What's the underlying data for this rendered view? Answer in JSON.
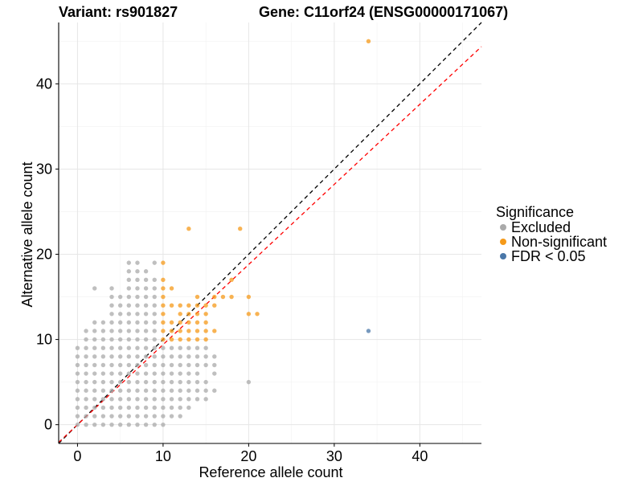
{
  "header": {
    "variant": "Variant: rs901827",
    "gene": "Gene: C11orf24 (ENSG00000171067)"
  },
  "chart_data": {
    "type": "scatter",
    "xlabel": "Reference allele count",
    "ylabel": "Alternative allele count",
    "xlim": [
      -2.2,
      47.2
    ],
    "ylim": [
      -2.2,
      47.2
    ],
    "xticks": [
      0,
      10,
      20,
      30,
      40
    ],
    "yticks": [
      0,
      10,
      20,
      30,
      40
    ],
    "grid": true,
    "legend": {
      "title": "Significance",
      "position": "right",
      "entries": [
        {
          "label": "Excluded",
          "color": "#aaaaaa"
        },
        {
          "label": "Non-significant",
          "color": "#f59a1a"
        },
        {
          "label": "FDR < 0.05",
          "color": "#4a77a8"
        }
      ]
    },
    "reference_lines": [
      {
        "name": "y = x",
        "slope": 1.0,
        "intercept": 0,
        "color": "#000000",
        "dash": true
      },
      {
        "name": "fit",
        "slope": 0.94,
        "intercept": 0,
        "color": "#ff0000",
        "dash": true
      }
    ],
    "series": [
      {
        "name": "Excluded",
        "color": "#aaaaaa",
        "points": [
          [
            0,
            0
          ],
          [
            0,
            1
          ],
          [
            0,
            2
          ],
          [
            0,
            3
          ],
          [
            0,
            4
          ],
          [
            0,
            5
          ],
          [
            0,
            6
          ],
          [
            0,
            7
          ],
          [
            0,
            8
          ],
          [
            0,
            9
          ],
          [
            1,
            0
          ],
          [
            1,
            1
          ],
          [
            1,
            2
          ],
          [
            1,
            3
          ],
          [
            1,
            4
          ],
          [
            1,
            5
          ],
          [
            1,
            6
          ],
          [
            1,
            7
          ],
          [
            1,
            8
          ],
          [
            1,
            9
          ],
          [
            1,
            10
          ],
          [
            1,
            11
          ],
          [
            2,
            0
          ],
          [
            2,
            1
          ],
          [
            2,
            2
          ],
          [
            2,
            3
          ],
          [
            2,
            4
          ],
          [
            2,
            5
          ],
          [
            2,
            6
          ],
          [
            2,
            7
          ],
          [
            2,
            8
          ],
          [
            2,
            9
          ],
          [
            2,
            10
          ],
          [
            2,
            11
          ],
          [
            2,
            12
          ],
          [
            2,
            16
          ],
          [
            3,
            0
          ],
          [
            3,
            1
          ],
          [
            3,
            2
          ],
          [
            3,
            3
          ],
          [
            3,
            4
          ],
          [
            3,
            5
          ],
          [
            3,
            6
          ],
          [
            3,
            7
          ],
          [
            3,
            8
          ],
          [
            3,
            9
          ],
          [
            3,
            10
          ],
          [
            3,
            11
          ],
          [
            3,
            12
          ],
          [
            4,
            0
          ],
          [
            4,
            1
          ],
          [
            4,
            2
          ],
          [
            4,
            3
          ],
          [
            4,
            4
          ],
          [
            4,
            5
          ],
          [
            4,
            6
          ],
          [
            4,
            7
          ],
          [
            4,
            8
          ],
          [
            4,
            9
          ],
          [
            4,
            10
          ],
          [
            4,
            11
          ],
          [
            4,
            12
          ],
          [
            4,
            13
          ],
          [
            4,
            14
          ],
          [
            4,
            15
          ],
          [
            4,
            16
          ],
          [
            5,
            0
          ],
          [
            5,
            1
          ],
          [
            5,
            2
          ],
          [
            5,
            3
          ],
          [
            5,
            4
          ],
          [
            5,
            5
          ],
          [
            5,
            6
          ],
          [
            5,
            7
          ],
          [
            5,
            8
          ],
          [
            5,
            9
          ],
          [
            5,
            10
          ],
          [
            5,
            11
          ],
          [
            5,
            12
          ],
          [
            5,
            13
          ],
          [
            5,
            14
          ],
          [
            5,
            15
          ],
          [
            6,
            0
          ],
          [
            6,
            1
          ],
          [
            6,
            2
          ],
          [
            6,
            3
          ],
          [
            6,
            4
          ],
          [
            6,
            5
          ],
          [
            6,
            6
          ],
          [
            6,
            7
          ],
          [
            6,
            8
          ],
          [
            6,
            9
          ],
          [
            6,
            10
          ],
          [
            6,
            11
          ],
          [
            6,
            12
          ],
          [
            6,
            13
          ],
          [
            6,
            14
          ],
          [
            6,
            15
          ],
          [
            6,
            16
          ],
          [
            6,
            17
          ],
          [
            6,
            18
          ],
          [
            6,
            19
          ],
          [
            7,
            0
          ],
          [
            7,
            1
          ],
          [
            7,
            2
          ],
          [
            7,
            3
          ],
          [
            7,
            4
          ],
          [
            7,
            5
          ],
          [
            7,
            6
          ],
          [
            7,
            7
          ],
          [
            7,
            8
          ],
          [
            7,
            9
          ],
          [
            7,
            10
          ],
          [
            7,
            11
          ],
          [
            7,
            12
          ],
          [
            7,
            13
          ],
          [
            7,
            14
          ],
          [
            7,
            15
          ],
          [
            7,
            16
          ],
          [
            7,
            17
          ],
          [
            7,
            18
          ],
          [
            7,
            19
          ],
          [
            8,
            0
          ],
          [
            8,
            1
          ],
          [
            8,
            2
          ],
          [
            8,
            3
          ],
          [
            8,
            4
          ],
          [
            8,
            5
          ],
          [
            8,
            6
          ],
          [
            8,
            7
          ],
          [
            8,
            8
          ],
          [
            8,
            9
          ],
          [
            8,
            10
          ],
          [
            8,
            11
          ],
          [
            8,
            12
          ],
          [
            8,
            13
          ],
          [
            8,
            14
          ],
          [
            8,
            15
          ],
          [
            8,
            16
          ],
          [
            8,
            17
          ],
          [
            8,
            18
          ],
          [
            9,
            0
          ],
          [
            9,
            1
          ],
          [
            9,
            2
          ],
          [
            9,
            3
          ],
          [
            9,
            4
          ],
          [
            9,
            5
          ],
          [
            9,
            6
          ],
          [
            9,
            7
          ],
          [
            9,
            8
          ],
          [
            9,
            9
          ],
          [
            9,
            10
          ],
          [
            9,
            11
          ],
          [
            9,
            12
          ],
          [
            9,
            13
          ],
          [
            9,
            14
          ],
          [
            9,
            15
          ],
          [
            9,
            16
          ],
          [
            9,
            17
          ],
          [
            9,
            19
          ],
          [
            10,
            0
          ],
          [
            10,
            1
          ],
          [
            10,
            2
          ],
          [
            10,
            3
          ],
          [
            10,
            4
          ],
          [
            10,
            5
          ],
          [
            10,
            6
          ],
          [
            10,
            7
          ],
          [
            10,
            8
          ],
          [
            10,
            9
          ],
          [
            11,
            1
          ],
          [
            11,
            2
          ],
          [
            11,
            3
          ],
          [
            11,
            4
          ],
          [
            11,
            5
          ],
          [
            11,
            6
          ],
          [
            11,
            7
          ],
          [
            11,
            8
          ],
          [
            11,
            9
          ],
          [
            12,
            1
          ],
          [
            12,
            2
          ],
          [
            12,
            3
          ],
          [
            12,
            4
          ],
          [
            12,
            5
          ],
          [
            12,
            6
          ],
          [
            12,
            7
          ],
          [
            12,
            8
          ],
          [
            12,
            9
          ],
          [
            13,
            2
          ],
          [
            13,
            3
          ],
          [
            13,
            4
          ],
          [
            13,
            5
          ],
          [
            13,
            6
          ],
          [
            13,
            7
          ],
          [
            13,
            8
          ],
          [
            13,
            9
          ],
          [
            14,
            3
          ],
          [
            14,
            4
          ],
          [
            14,
            5
          ],
          [
            14,
            6
          ],
          [
            14,
            7
          ],
          [
            14,
            8
          ],
          [
            14,
            9
          ],
          [
            15,
            3
          ],
          [
            15,
            4
          ],
          [
            15,
            5
          ],
          [
            15,
            7
          ],
          [
            15,
            8
          ],
          [
            15,
            9
          ],
          [
            16,
            4
          ],
          [
            16,
            6
          ],
          [
            16,
            7
          ],
          [
            16,
            8
          ],
          [
            20,
            5
          ]
        ]
      },
      {
        "name": "Non-significant",
        "color": "#f59a1a",
        "points": [
          [
            10,
            10
          ],
          [
            10,
            11
          ],
          [
            10,
            12
          ],
          [
            10,
            13
          ],
          [
            10,
            14
          ],
          [
            10,
            15
          ],
          [
            10,
            16
          ],
          [
            10,
            17
          ],
          [
            10,
            19
          ],
          [
            11,
            10
          ],
          [
            11,
            11
          ],
          [
            11,
            12
          ],
          [
            11,
            14
          ],
          [
            11,
            16
          ],
          [
            12,
            10
          ],
          [
            12,
            11
          ],
          [
            12,
            12
          ],
          [
            12,
            13
          ],
          [
            12,
            14
          ],
          [
            13,
            10
          ],
          [
            13,
            11
          ],
          [
            13,
            12
          ],
          [
            13,
            13
          ],
          [
            13,
            14
          ],
          [
            13,
            23
          ],
          [
            14,
            10
          ],
          [
            14,
            11
          ],
          [
            14,
            12
          ],
          [
            14,
            13
          ],
          [
            14,
            14
          ],
          [
            14,
            15
          ],
          [
            15,
            10
          ],
          [
            15,
            11
          ],
          [
            15,
            12
          ],
          [
            15,
            13
          ],
          [
            15,
            14
          ],
          [
            16,
            11
          ],
          [
            16,
            14
          ],
          [
            16,
            15
          ],
          [
            17,
            15
          ],
          [
            18,
            15
          ],
          [
            18,
            17
          ],
          [
            19,
            23
          ],
          [
            20,
            13
          ],
          [
            20,
            15
          ],
          [
            21,
            13
          ],
          [
            34,
            45
          ]
        ]
      },
      {
        "name": "FDR < 0.05",
        "color": "#4a77a8",
        "points": [
          [
            34,
            11
          ]
        ]
      }
    ]
  }
}
